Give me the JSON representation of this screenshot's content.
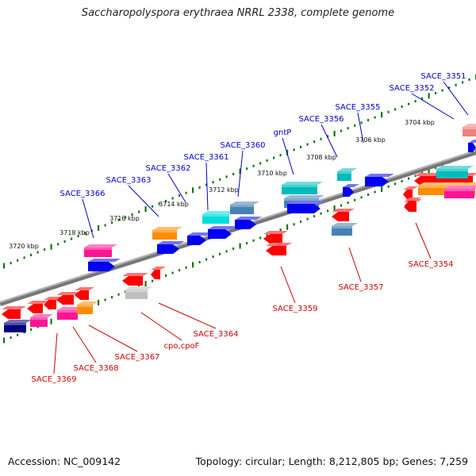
{
  "title": "Saccharopolyspora erythraea NRRL 2338, complete genome",
  "footer": {
    "accession": "Accession: NC_009142",
    "summary": "Topology: circular; Length: 8,212,805 bp; Genes: 7,259"
  },
  "colors": {
    "forward_label": "#0000cc",
    "reverse_label": "#cc0000",
    "dots": "#117711",
    "backbone": "#777777"
  },
  "positions": [
    "3720 kbp",
    "3718 kbp",
    "3716 kbp",
    "3714 kbp",
    "3712 kbp",
    "3710 kbp",
    "3708 kbp",
    "3706 kbp",
    "3704 kbp"
  ],
  "forward_labels": [
    "SACE_3366",
    "SACE_3363",
    "SACE_3362",
    "SACE_3361",
    "SACE_3360",
    "gntP",
    "SACE_3356",
    "SACE_3355",
    "SACE_3352",
    "SACE_3351"
  ],
  "reverse_labels": [
    "SACE_3369",
    "SACE_3368",
    "SACE_3367",
    "cpo,cpoF",
    "SACE_3364",
    "SACE_3359",
    "SACE_3357",
    "SACE_3354"
  ],
  "genes": [
    {
      "color": "#ff1493",
      "dir": "none"
    },
    {
      "color": "#0000ee",
      "dir": "right"
    },
    {
      "color": "#ff8c00",
      "dir": "none"
    },
    {
      "color": "#0000ee",
      "dir": "right"
    },
    {
      "color": "#0000ee",
      "dir": "right"
    },
    {
      "color": "#00dddd",
      "dir": "none"
    },
    {
      "color": "#0000ee",
      "dir": "right"
    },
    {
      "color": "#4682b4",
      "dir": "none"
    },
    {
      "color": "#0000ee",
      "dir": "right"
    },
    {
      "color": "#00bbbb",
      "dir": "none"
    },
    {
      "color": "#4682b4",
      "dir": "none"
    },
    {
      "color": "#0000ee",
      "dir": "right"
    },
    {
      "color": "#00bbbb",
      "dir": "none"
    },
    {
      "color": "#0000ee",
      "dir": "right"
    },
    {
      "color": "#0000ee",
      "dir": "right"
    },
    {
      "color": "#f08080",
      "dir": "none"
    },
    {
      "color": "#0000ee",
      "dir": "right"
    },
    {
      "color": "#ff0000",
      "dir": "left"
    },
    {
      "color": "#ff0000",
      "dir": "left"
    },
    {
      "color": "#ff0000",
      "dir": "left"
    },
    {
      "color": "#ff0000",
      "dir": "left"
    },
    {
      "color": "#ff0000",
      "dir": "left"
    },
    {
      "color": "#ff0000",
      "dir": "left"
    },
    {
      "color": "#ff0000",
      "dir": "left"
    },
    {
      "color": "#ff0000",
      "dir": "left"
    },
    {
      "color": "#000080",
      "dir": "none"
    },
    {
      "color": "#ff1493",
      "dir": "none"
    },
    {
      "color": "#ff1493",
      "dir": "none"
    },
    {
      "color": "#ff8c00",
      "dir": "none"
    },
    {
      "color": "#ff0000",
      "dir": "left"
    },
    {
      "color": "#ff0000",
      "dir": "left"
    },
    {
      "color": "#c0c0c0",
      "dir": "none"
    },
    {
      "color": "#ff0000",
      "dir": "left"
    },
    {
      "color": "#4682b4",
      "dir": "none"
    },
    {
      "color": "#ff0000",
      "dir": "left"
    },
    {
      "color": "#ff8c00",
      "dir": "none"
    },
    {
      "color": "#ff0000",
      "dir": "left"
    },
    {
      "color": "#ff0000",
      "dir": "left"
    },
    {
      "color": "#00bbbb",
      "dir": "none"
    },
    {
      "color": "#ff1493",
      "dir": "none"
    }
  ]
}
